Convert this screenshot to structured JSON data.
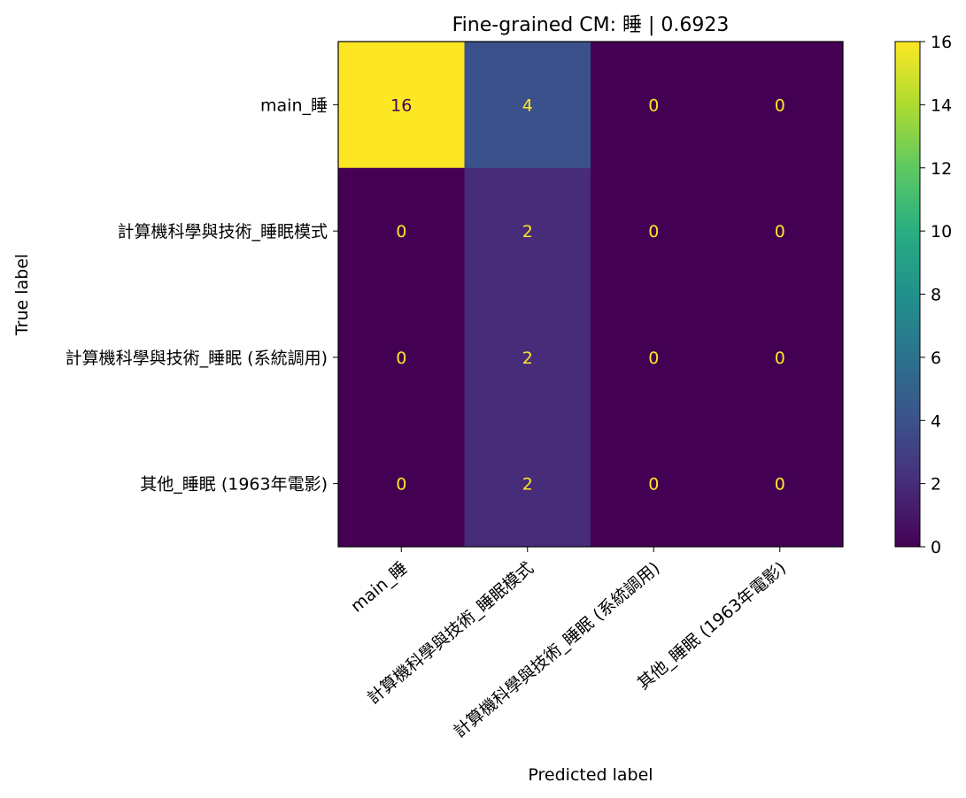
{
  "chart_data": {
    "type": "heatmap",
    "title": "Fine-grained CM: 睡 | 0.6923",
    "xlabel": "Predicted label",
    "ylabel": "True label",
    "x_categories": [
      "main_睡",
      "計算機科學與技術_睡眠模式",
      "計算機科學與技術_睡眠 (系統調用)",
      "其他_睡眠 (1963年電影)"
    ],
    "y_categories": [
      "main_睡",
      "計算機科學與技術_睡眠模式",
      "計算機科學與技術_睡眠 (系統調用)",
      "其他_睡眠 (1963年電影)"
    ],
    "values": [
      [
        16,
        4,
        0,
        0
      ],
      [
        0,
        2,
        0,
        0
      ],
      [
        0,
        2,
        0,
        0
      ],
      [
        0,
        2,
        0,
        0
      ]
    ],
    "colorbar": {
      "range": [
        0,
        16
      ],
      "ticks": [
        "0",
        "2",
        "4",
        "6",
        "8",
        "10",
        "12",
        "14",
        "16"
      ],
      "colormap": "viridis"
    },
    "text_colors": {
      "on_dark": "#fde725",
      "on_light": "#440154"
    }
  }
}
